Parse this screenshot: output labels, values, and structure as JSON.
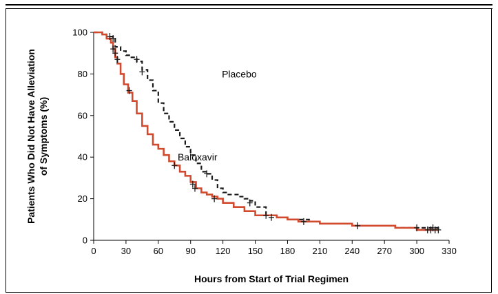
{
  "chart_data": {
    "type": "line",
    "subtype": "kaplan-meier-step",
    "xlabel": "Hours from Start of Trial Regimen",
    "ylabel_lines": [
      "Patients Who Did Not Have Alleviation",
      "of Symptoms (%)"
    ],
    "xlim": [
      0,
      330
    ],
    "ylim": [
      0,
      100
    ],
    "xticks": [
      0,
      30,
      60,
      90,
      120,
      150,
      180,
      210,
      240,
      270,
      300,
      330
    ],
    "yticks": [
      0,
      20,
      40,
      60,
      80,
      100
    ],
    "grid": false,
    "legend": "none (inline labels)",
    "series": [
      {
        "name": "Placebo",
        "color": "#1a1a1a",
        "style": "dashed",
        "x": [
          0,
          8,
          12,
          18,
          20,
          25,
          30,
          35,
          40,
          45,
          50,
          55,
          60,
          65,
          70,
          75,
          80,
          85,
          90,
          95,
          100,
          105,
          110,
          115,
          120,
          125,
          130,
          135,
          140,
          145,
          150,
          160,
          170,
          180,
          190,
          200,
          210,
          220,
          240,
          260,
          280,
          300,
          320
        ],
        "y": [
          100,
          99,
          98,
          97,
          93,
          91,
          89,
          88,
          86,
          82,
          77,
          72,
          66,
          61,
          57,
          53,
          49,
          45,
          41,
          37,
          33,
          32,
          29,
          25,
          23,
          22,
          22,
          21,
          20,
          19,
          16,
          12,
          11,
          10,
          10,
          9,
          8,
          8,
          7,
          7,
          6,
          6,
          5
        ]
      },
      {
        "name": "Baloxavir",
        "color": "#d24a2e",
        "style": "solid",
        "x": [
          0,
          8,
          12,
          16,
          18,
          20,
          22,
          25,
          28,
          32,
          36,
          40,
          45,
          50,
          55,
          60,
          65,
          70,
          75,
          80,
          85,
          90,
          95,
          100,
          105,
          110,
          115,
          120,
          130,
          140,
          150,
          160,
          170,
          180,
          190,
          200,
          210,
          220,
          240,
          260,
          280,
          300,
          320
        ],
        "y": [
          100,
          99,
          97,
          95,
          92,
          88,
          85,
          80,
          75,
          71,
          67,
          61,
          55,
          51,
          46,
          44,
          41,
          38,
          36,
          33,
          31,
          28,
          25,
          23,
          22,
          21,
          20,
          18,
          16,
          14,
          12,
          12,
          11,
          10,
          9,
          9,
          8,
          8,
          7,
          7,
          6,
          5,
          5
        ]
      }
    ],
    "censor_marks": {
      "Placebo": [
        [
          18,
          97
        ],
        [
          40,
          87
        ],
        [
          45,
          81
        ],
        [
          105,
          32
        ],
        [
          145,
          18
        ],
        [
          165,
          11
        ],
        [
          195,
          9
        ],
        [
          245,
          7
        ],
        [
          300,
          6
        ],
        [
          310,
          5
        ],
        [
          313,
          5
        ],
        [
          315,
          6
        ],
        [
          317,
          5
        ],
        [
          320,
          5
        ]
      ],
      "Baloxavir": [
        [
          15,
          98
        ],
        [
          18,
          92
        ],
        [
          20,
          90
        ],
        [
          22,
          87
        ],
        [
          33,
          72
        ],
        [
          75,
          36
        ],
        [
          92,
          27
        ],
        [
          94,
          25
        ],
        [
          112,
          20
        ],
        [
          160,
          12
        ]
      ]
    },
    "annotations": [
      {
        "text": "Placebo",
        "x": 119,
        "y": 80
      },
      {
        "text": "Baloxavir",
        "x": 78,
        "y": 40
      }
    ]
  }
}
